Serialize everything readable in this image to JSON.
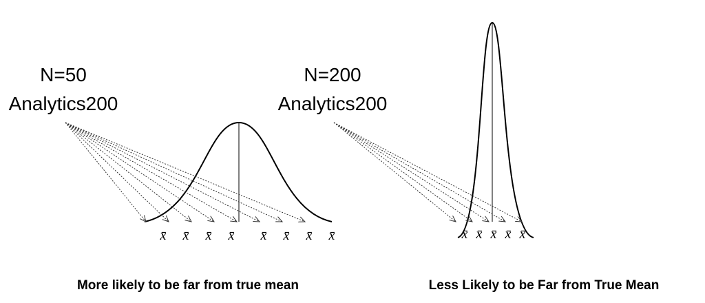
{
  "left": {
    "sample_size": "N=50",
    "label": "Analytics200",
    "sample_means": [
      "x̄",
      "x̄",
      "x̄",
      "x̄",
      "x̄",
      "x̄",
      "x̄",
      "x̄"
    ],
    "caption": "More likely to be far from true mean"
  },
  "right": {
    "sample_size": "N=200",
    "label": "Analytics200",
    "sample_means": [
      "x̄",
      "x̄",
      "x̄",
      "x̄",
      "x̄"
    ],
    "caption": "Less Likely to be Far from True Mean"
  }
}
